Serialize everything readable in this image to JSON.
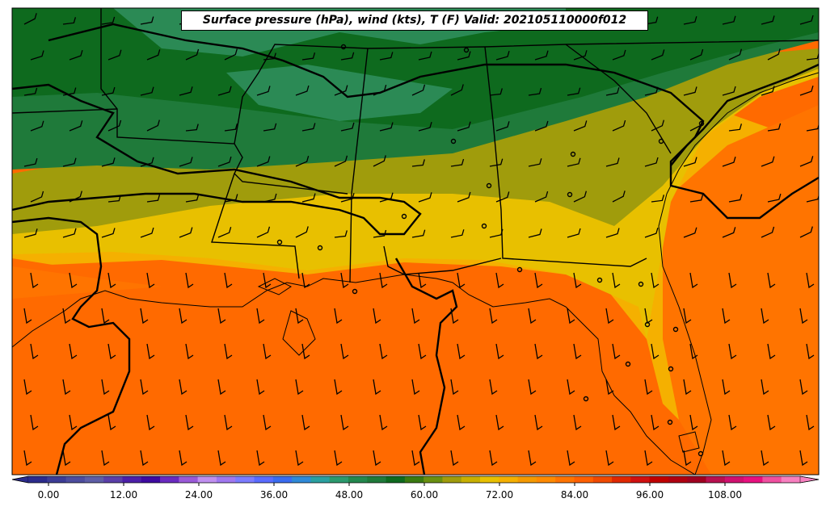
{
  "title": "Surface pressure (hPa), wind (kts), T (F) Valid: 202105110000f012",
  "colorbar": {
    "colors": [
      "#2b2b8c",
      "#3c3c96",
      "#4d4d9e",
      "#5e5ea6",
      "#5a3fa8",
      "#4c1fa8",
      "#3e0aa0",
      "#6a2ac0",
      "#9a5ad8",
      "#c090f0",
      "#a078f0",
      "#7c7cff",
      "#5a6cff",
      "#3a6cf0",
      "#2f8ad8",
      "#2aa0a0",
      "#2b9a6e",
      "#23884e",
      "#1f7a3a",
      "#0e6a1e",
      "#3a7a10",
      "#6a9010",
      "#a09c0c",
      "#c8b000",
      "#e8c000",
      "#f5b000",
      "#f59a00",
      "#ff8a00",
      "#ff7400",
      "#ff6000",
      "#f04a00",
      "#e02800",
      "#d01010",
      "#c00000",
      "#b00010",
      "#a00020",
      "#b81050",
      "#d01070",
      "#e81080",
      "#f050a0",
      "#f880c0"
    ],
    "ticks": [
      "0.00",
      "12.00",
      "24.00",
      "36.00",
      "48.00",
      "60.00",
      "72.00",
      "84.00",
      "96.00",
      "108.00"
    ]
  },
  "fill_colors": {
    "dark_green": "#0e6a1e",
    "green": "#23884e",
    "mid_green": "#1f7a3a",
    "olive": "#3a7a10",
    "olive_yellow": "#a09c0c",
    "yellow": "#e8c000",
    "gold": "#f5b000",
    "orange_light": "#f59a00",
    "orange": "#ff7400",
    "orange_dark": "#ff6000"
  }
}
